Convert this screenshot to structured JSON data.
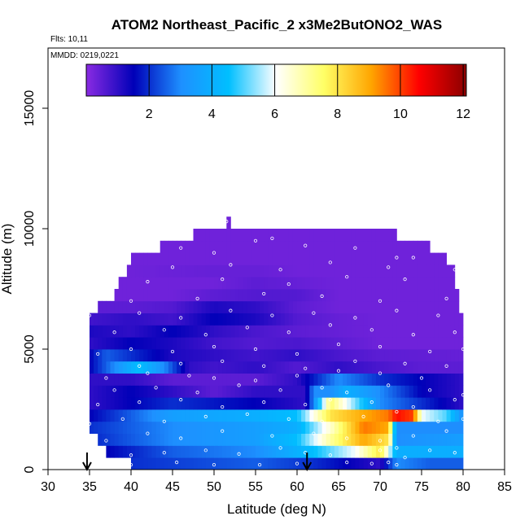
{
  "chart_data": {
    "type": "heatmap",
    "title": "ATOM2 Northeast_Pacific_2 x3Me2ButONO2_WAS",
    "flights_text": "Flts: 10,11",
    "dates_text": "MMDD: 0219,0221",
    "xlabel": "Latitude (deg N)",
    "ylabel": "Altitude (m)",
    "xlim": [
      30,
      85
    ],
    "ylim": [
      0,
      17500
    ],
    "x_ticks": [
      "30",
      "35",
      "40",
      "45",
      "50",
      "55",
      "60",
      "65",
      "70",
      "75",
      "80",
      "85"
    ],
    "y_ticks": [
      "0",
      "5000",
      "10000",
      "15000"
    ],
    "colorbar": {
      "range": [
        0,
        12.1
      ],
      "ticks": [
        "2",
        "4",
        "6",
        "8",
        "10",
        "12"
      ],
      "colors": [
        "#8a2be2",
        "#0000b8",
        "#1e90ff",
        "#00bfff",
        "#ffffff",
        "#ffff66",
        "#ffa500",
        "#ff0000",
        "#8b0000"
      ]
    },
    "arrows_lat": [
      34.7,
      61.2
    ],
    "altitude_bands": [
      {
        "y0": 0,
        "y1": 500,
        "x0": 40,
        "x1": 80,
        "pts": [
          [
            40,
            2
          ],
          [
            55,
            2.5
          ],
          [
            62,
            2
          ],
          [
            70,
            1
          ],
          [
            72,
            3
          ],
          [
            76,
            2.5
          ],
          [
            80,
            2.5
          ]
        ]
      },
      {
        "y0": 500,
        "y1": 1000,
        "x0": 37,
        "x1": 80,
        "pts": [
          [
            37,
            1.5
          ],
          [
            45,
            2.5
          ],
          [
            55,
            3
          ],
          [
            62,
            4.5
          ],
          [
            67,
            6
          ],
          [
            70,
            8
          ],
          [
            72,
            4
          ],
          [
            74,
            4
          ],
          [
            80,
            4
          ]
        ]
      },
      {
        "y0": 1000,
        "y1": 1500,
        "x0": 36,
        "x1": 80,
        "pts": [
          [
            36,
            2
          ],
          [
            45,
            3
          ],
          [
            55,
            3.5
          ],
          [
            60,
            4.5
          ],
          [
            64,
            7
          ],
          [
            68,
            9
          ],
          [
            71,
            8
          ],
          [
            72,
            3
          ],
          [
            80,
            3.5
          ]
        ]
      },
      {
        "y0": 1500,
        "y1": 2000,
        "x0": 35,
        "x1": 80,
        "pts": [
          [
            35,
            2
          ],
          [
            45,
            3
          ],
          [
            55,
            3.5
          ],
          [
            60,
            4
          ],
          [
            64,
            6.5
          ],
          [
            68,
            9.5
          ],
          [
            71,
            9
          ],
          [
            72,
            3
          ],
          [
            80,
            3
          ]
        ]
      },
      {
        "y0": 2000,
        "y1": 2500,
        "x0": 35,
        "x1": 80,
        "pts": [
          [
            35,
            1.5
          ],
          [
            45,
            3.5
          ],
          [
            55,
            4
          ],
          [
            60,
            4.5
          ],
          [
            64,
            8
          ],
          [
            68,
            9
          ],
          [
            71,
            9.5
          ],
          [
            72,
            10.5
          ],
          [
            74,
            10
          ],
          [
            75,
            6
          ],
          [
            78,
            5
          ],
          [
            80,
            3
          ]
        ]
      },
      {
        "y0": 2500,
        "y1": 3000,
        "x0": 35,
        "x1": 80,
        "pts": [
          [
            35,
            1
          ],
          [
            45,
            2
          ],
          [
            55,
            1.5
          ],
          [
            61,
            1
          ],
          [
            62,
            3
          ],
          [
            64,
            7.5
          ],
          [
            66,
            6
          ],
          [
            70,
            3
          ],
          [
            75,
            2
          ],
          [
            80,
            1
          ]
        ]
      },
      {
        "y0": 3000,
        "y1": 3500,
        "x0": 35,
        "x1": 80,
        "pts": [
          [
            35,
            1
          ],
          [
            40,
            1.5
          ],
          [
            45,
            1
          ],
          [
            50,
            0.5
          ],
          [
            55,
            1
          ],
          [
            61,
            1
          ],
          [
            62,
            3
          ],
          [
            64,
            3
          ],
          [
            66,
            4
          ],
          [
            70,
            3
          ],
          [
            75,
            1.5
          ],
          [
            80,
            1
          ]
        ]
      },
      {
        "y0": 3500,
        "y1": 4000,
        "x0": 35,
        "x1": 80,
        "pts": [
          [
            35,
            1
          ],
          [
            40,
            1
          ],
          [
            45,
            0.5
          ],
          [
            50,
            0.5
          ],
          [
            55,
            0.5
          ],
          [
            60,
            1
          ],
          [
            65,
            3
          ],
          [
            70,
            2
          ],
          [
            75,
            1.5
          ],
          [
            80,
            1
          ]
        ]
      },
      {
        "y0": 4000,
        "y1": 4500,
        "x0": 35,
        "x1": 80,
        "pts": [
          [
            35,
            1.5
          ],
          [
            38,
            3
          ],
          [
            41,
            4.5
          ],
          [
            44,
            3
          ],
          [
            47,
            1
          ],
          [
            50,
            0.8
          ],
          [
            55,
            1
          ],
          [
            60,
            0.6
          ],
          [
            65,
            1
          ],
          [
            70,
            0.7
          ],
          [
            75,
            0.5
          ],
          [
            80,
            0.5
          ]
        ]
      },
      {
        "y0": 4500,
        "y1": 5000,
        "x0": 35,
        "x1": 80,
        "pts": [
          [
            35,
            1.5
          ],
          [
            37,
            2.5
          ],
          [
            40,
            2
          ],
          [
            45,
            1.2
          ],
          [
            50,
            1
          ],
          [
            55,
            0.8
          ],
          [
            60,
            1
          ],
          [
            65,
            0.7
          ],
          [
            70,
            0.5
          ],
          [
            80,
            0.4
          ]
        ]
      },
      {
        "y0": 5000,
        "y1": 5500,
        "x0": 35,
        "x1": 80,
        "pts": [
          [
            35,
            1
          ],
          [
            40,
            1.5
          ],
          [
            45,
            1.2
          ],
          [
            50,
            0.8
          ],
          [
            55,
            0.6
          ],
          [
            60,
            0.7
          ],
          [
            65,
            0.5
          ],
          [
            70,
            0.3
          ],
          [
            80,
            0.3
          ]
        ]
      },
      {
        "y0": 5500,
        "y1": 6000,
        "x0": 35,
        "x1": 80,
        "pts": [
          [
            35,
            1.2
          ],
          [
            40,
            1
          ],
          [
            45,
            1.5
          ],
          [
            50,
            1
          ],
          [
            55,
            0.7
          ],
          [
            60,
            0.5
          ],
          [
            65,
            0.4
          ],
          [
            70,
            0.3
          ],
          [
            80,
            0.3
          ]
        ]
      },
      {
        "y0": 6000,
        "y1": 6500,
        "x0": 35,
        "x1": 80,
        "pts": [
          [
            35,
            0.8
          ],
          [
            40,
            1
          ],
          [
            45,
            0.8
          ],
          [
            50,
            1.5
          ],
          [
            55,
            1.2
          ],
          [
            60,
            0.6
          ],
          [
            65,
            0.4
          ],
          [
            70,
            0.3
          ],
          [
            80,
            0.3
          ]
        ]
      },
      {
        "y0": 6500,
        "y1": 7000,
        "x0": 36,
        "x1": 79.5,
        "pts": [
          [
            36,
            0.5
          ],
          [
            40,
            0.5
          ],
          [
            45,
            0.6
          ],
          [
            50,
            1.2
          ],
          [
            55,
            1
          ],
          [
            60,
            0.5
          ],
          [
            65,
            0.3
          ],
          [
            80,
            0.3
          ]
        ]
      },
      {
        "y0": 7000,
        "y1": 7500,
        "x0": 38,
        "x1": 79.5,
        "pts": [
          [
            38,
            0.3
          ],
          [
            45,
            0.3
          ],
          [
            50,
            0.5
          ],
          [
            55,
            0.6
          ],
          [
            60,
            0.6
          ],
          [
            65,
            0.3
          ],
          [
            80,
            0.3
          ]
        ]
      },
      {
        "y0": 7500,
        "y1": 8000,
        "x0": 38.5,
        "x1": 79,
        "pts": [
          [
            38,
            0.3
          ],
          [
            50,
            0.3
          ],
          [
            55,
            0.5
          ],
          [
            60,
            0.4
          ],
          [
            65,
            0.3
          ],
          [
            80,
            0.3
          ]
        ]
      },
      {
        "y0": 8000,
        "y1": 8500,
        "x0": 39.5,
        "x1": 79,
        "pts": [
          [
            39,
            0.3
          ],
          [
            50,
            0.4
          ],
          [
            55,
            0.4
          ],
          [
            60,
            0.3
          ],
          [
            80,
            0.3
          ]
        ]
      },
      {
        "y0": 8500,
        "y1": 9000,
        "x0": 40,
        "x1": 78,
        "pts": [
          [
            40,
            0.3
          ],
          [
            80,
            0.3
          ]
        ]
      },
      {
        "y0": 9000,
        "y1": 9500,
        "x0": 43.5,
        "x1": 76,
        "pts": [
          [
            43,
            0.3
          ],
          [
            76,
            0.3
          ]
        ]
      },
      {
        "y0": 9500,
        "y1": 10000,
        "x0": 47.5,
        "x1": 72,
        "pts": [
          [
            47,
            0.3
          ],
          [
            72,
            0.3
          ]
        ]
      },
      {
        "y0": 10000,
        "y1": 10500,
        "x0": 51.5,
        "x1": 52,
        "pts": [
          [
            51.5,
            0.3
          ],
          [
            52,
            0.3
          ]
        ]
      }
    ],
    "sample_points": [
      [
        40,
        200
      ],
      [
        45.5,
        300
      ],
      [
        50,
        200
      ],
      [
        55.5,
        200
      ],
      [
        60,
        250
      ],
      [
        66,
        300
      ],
      [
        69,
        250
      ],
      [
        71,
        300
      ],
      [
        72,
        200
      ],
      [
        73,
        500
      ],
      [
        40,
        600
      ],
      [
        44,
        700
      ],
      [
        49,
        800
      ],
      [
        53,
        650
      ],
      [
        58,
        900
      ],
      [
        61,
        700
      ],
      [
        64,
        600
      ],
      [
        70,
        800
      ],
      [
        72,
        900
      ],
      [
        76,
        800
      ],
      [
        79,
        700
      ],
      [
        37,
        1200
      ],
      [
        42,
        1500
      ],
      [
        46,
        1300
      ],
      [
        51,
        1600
      ],
      [
        57,
        1400
      ],
      [
        62,
        1500
      ],
      [
        66,
        1300
      ],
      [
        70,
        1200
      ],
      [
        74,
        1400
      ],
      [
        78,
        1600
      ],
      [
        35,
        1900
      ],
      [
        39,
        2100
      ],
      [
        44,
        2000
      ],
      [
        49,
        2200
      ],
      [
        54,
        2300
      ],
      [
        59,
        2100
      ],
      [
        63,
        2000
      ],
      [
        68,
        2200
      ],
      [
        72,
        2400
      ],
      [
        77,
        2000
      ],
      [
        80,
        2100
      ],
      [
        36,
        2700
      ],
      [
        41,
        2800
      ],
      [
        46,
        2900
      ],
      [
        51,
        2600
      ],
      [
        56,
        2800
      ],
      [
        61,
        2700
      ],
      [
        64,
        2900
      ],
      [
        69,
        2800
      ],
      [
        74,
        2600
      ],
      [
        79,
        2900
      ],
      [
        38,
        3300
      ],
      [
        43,
        3400
      ],
      [
        48,
        3200
      ],
      [
        53,
        3500
      ],
      [
        58,
        3300
      ],
      [
        63,
        3400
      ],
      [
        66,
        3200
      ],
      [
        71,
        3500
      ],
      [
        76,
        3300
      ],
      [
        80,
        3100
      ],
      [
        37,
        3800
      ],
      [
        42,
        4000
      ],
      [
        47,
        3900
      ],
      [
        50,
        3800
      ],
      [
        55,
        3700
      ],
      [
        60,
        3900
      ],
      [
        65,
        4100
      ],
      [
        70,
        4000
      ],
      [
        75,
        3800
      ],
      [
        41,
        4300
      ],
      [
        46,
        4400
      ],
      [
        51,
        4500
      ],
      [
        56,
        4300
      ],
      [
        61,
        4200
      ],
      [
        67,
        4500
      ],
      [
        73,
        4400
      ],
      [
        78,
        4300
      ],
      [
        36,
        4800
      ],
      [
        40,
        5000
      ],
      [
        45,
        4900
      ],
      [
        50,
        5100
      ],
      [
        55,
        5000
      ],
      [
        60,
        4800
      ],
      [
        65,
        5200
      ],
      [
        70,
        5100
      ],
      [
        76,
        4900
      ],
      [
        80,
        5000
      ],
      [
        38,
        5700
      ],
      [
        44,
        5800
      ],
      [
        49,
        5600
      ],
      [
        54,
        5900
      ],
      [
        59,
        5700
      ],
      [
        64,
        6000
      ],
      [
        69,
        5800
      ],
      [
        74,
        5600
      ],
      [
        79,
        5700
      ],
      [
        35,
        6400
      ],
      [
        41,
        6500
      ],
      [
        46,
        6300
      ],
      [
        52,
        6600
      ],
      [
        57,
        6400
      ],
      [
        62,
        6500
      ],
      [
        67,
        6300
      ],
      [
        72,
        6600
      ],
      [
        77,
        6400
      ],
      [
        40,
        7000
      ],
      [
        48,
        7100
      ],
      [
        56,
        7300
      ],
      [
        63,
        7200
      ],
      [
        70,
        7000
      ],
      [
        78,
        7100
      ],
      [
        42,
        7800
      ],
      [
        51,
        7900
      ],
      [
        59,
        7700
      ],
      [
        66,
        8000
      ],
      [
        73,
        7900
      ],
      [
        45,
        8400
      ],
      [
        52,
        8500
      ],
      [
        58,
        8300
      ],
      [
        64,
        8600
      ],
      [
        71,
        8400
      ],
      [
        79,
        8300
      ],
      [
        46,
        9200
      ],
      [
        50,
        9000
      ],
      [
        55,
        9500
      ],
      [
        57,
        9600
      ],
      [
        61,
        9300
      ],
      [
        67,
        9200
      ],
      [
        72,
        8800
      ],
      [
        74,
        8800
      ],
      [
        51.5,
        10300
      ]
    ]
  }
}
